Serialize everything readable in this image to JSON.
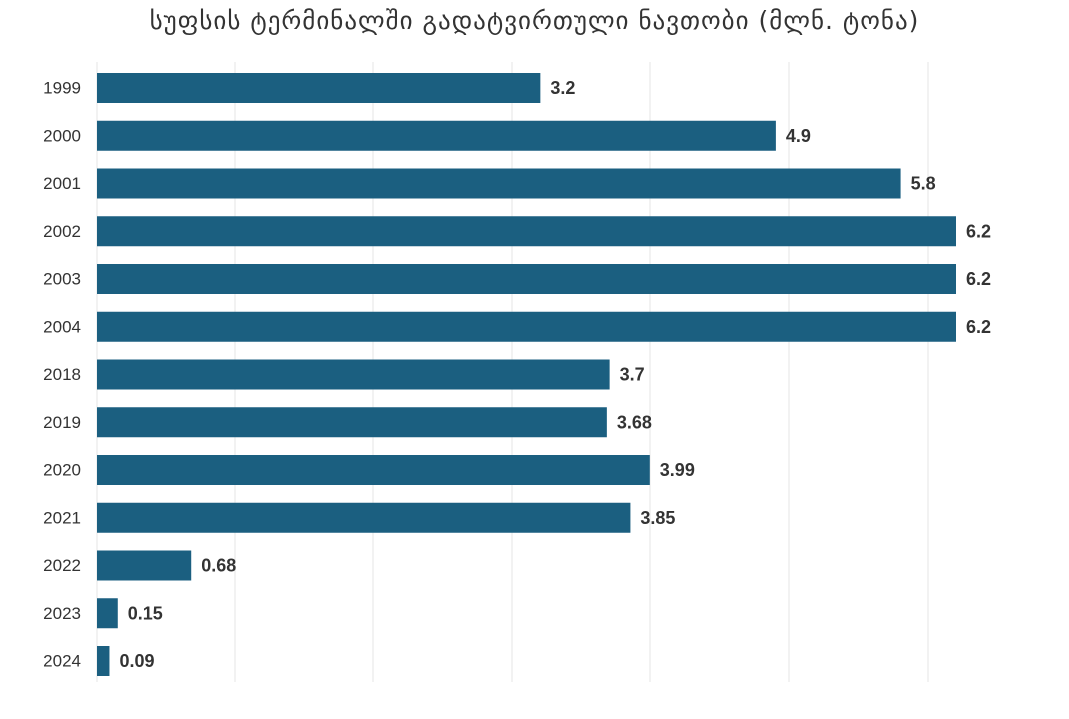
{
  "chart_data": {
    "type": "bar",
    "orientation": "horizontal",
    "title": "სუფსის ტერმინალში გადატვირთული ნავთობი (მლნ. ტონა)",
    "categories": [
      "1999",
      "2000",
      "2001",
      "2002",
      "2003",
      "2004",
      "2018",
      "2019",
      "2020",
      "2021",
      "2022",
      "2023",
      "2024"
    ],
    "values": [
      3.2,
      4.9,
      5.8,
      6.2,
      6.2,
      6.2,
      3.7,
      3.68,
      3.99,
      3.85,
      0.68,
      0.15,
      0.09
    ],
    "value_labels": [
      "3.2",
      "4.9",
      "5.8",
      "6.2",
      "6.2",
      "6.2",
      "3.7",
      "3.68",
      "3.99",
      "3.85",
      "0.68",
      "0.15",
      "0.09"
    ],
    "xlim": [
      0,
      6.2
    ],
    "grid": true,
    "legend": "none",
    "bar_color": "#1b5f80",
    "grid_color": "#e6e6e6",
    "text_color": "#333333"
  }
}
